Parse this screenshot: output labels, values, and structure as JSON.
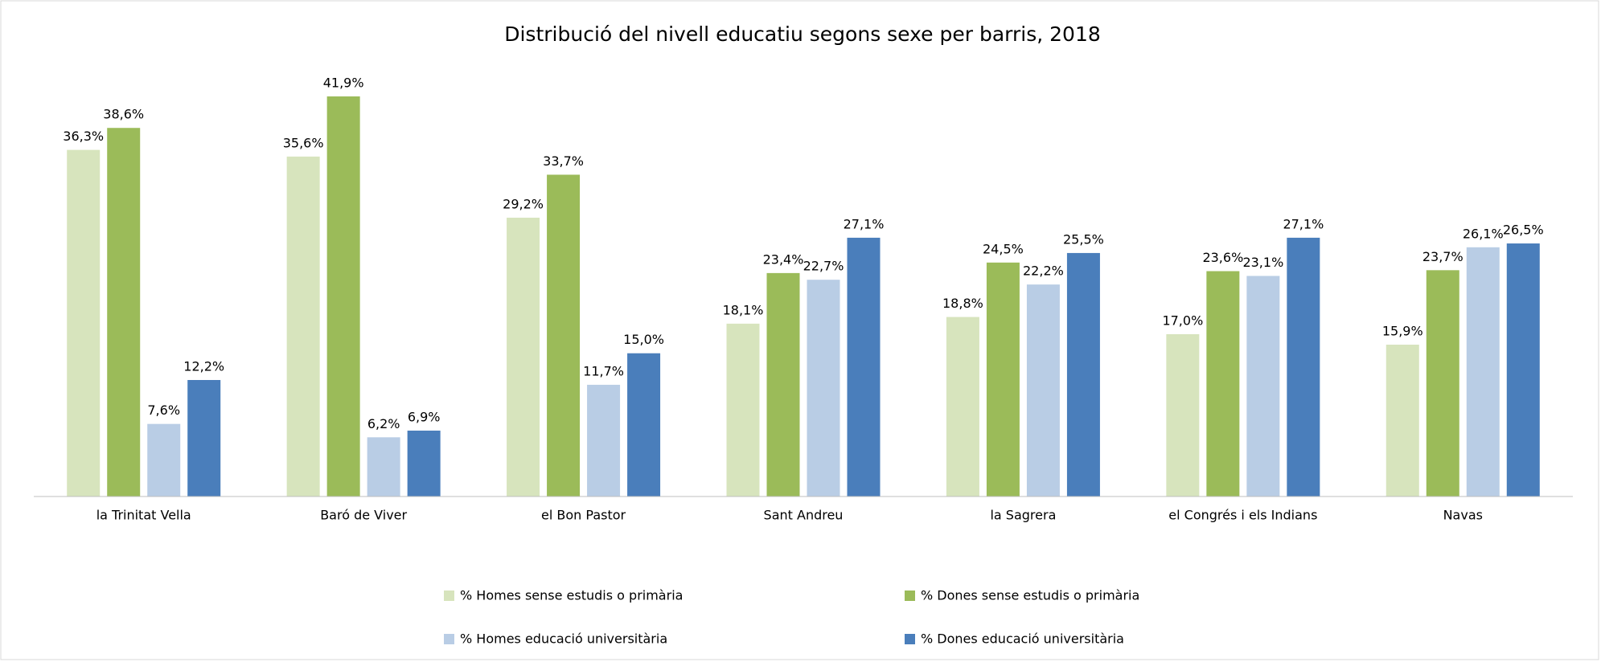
{
  "chart_data": {
    "type": "bar",
    "title": "Distribució  del nivell educatiu segons sexe per barris, 2018",
    "categories": [
      "la Trinitat Vella",
      "Baró de Viver",
      "el Bon Pastor",
      "Sant Andreu",
      "la Sagrera",
      "el Congrés i els Indians",
      "Navas"
    ],
    "series": [
      {
        "name": "% Homes sense estudis o primària",
        "color": "#d7e4bd",
        "values": [
          36.3,
          35.6,
          29.2,
          18.1,
          18.8,
          17.0,
          15.9
        ],
        "value_labels": [
          "36,3%",
          "35,6%",
          "29,2%",
          "18,1%",
          "18,8%",
          "17,0%",
          "15,9%"
        ]
      },
      {
        "name": "% Dones sense estudis o primària",
        "color": "#9bbb59",
        "values": [
          38.6,
          41.9,
          33.7,
          23.4,
          24.5,
          23.6,
          23.7
        ],
        "value_labels": [
          "38,6%",
          "41,9%",
          "33,7%",
          "23,4%",
          "24,5%",
          "23,6%",
          "23,7%"
        ]
      },
      {
        "name": "% Homes educació universitària",
        "color": "#b9cde5",
        "values": [
          7.6,
          6.2,
          11.7,
          22.7,
          22.2,
          23.1,
          26.1
        ],
        "value_labels": [
          "7,6%",
          "6,2%",
          "11,7%",
          "22,7%",
          "22,2%",
          "23,1%",
          "26,1%"
        ]
      },
      {
        "name": "% Dones educació universitària",
        "color": "#4a7ebb",
        "values": [
          12.2,
          6.9,
          15.0,
          27.1,
          25.5,
          27.1,
          26.5
        ],
        "value_labels": [
          "12,2%",
          "6,9%",
          "15,0%",
          "27,1%",
          "25,5%",
          "27,1%",
          "26,5%"
        ]
      }
    ]
  }
}
